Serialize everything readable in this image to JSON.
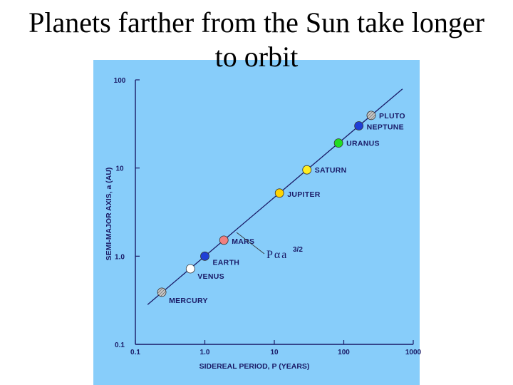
{
  "slide": {
    "title": "Planets farther from the Sun take longer to orbit"
  },
  "colors": {
    "panel_bg": "#87cdfa",
    "ink": "#1a1a66"
  },
  "annotation": {
    "law_p": "P",
    "law_alpha": "α",
    "law_a": "a",
    "law_exponent": "3/2"
  },
  "chart_data": {
    "type": "scatter",
    "x_scale": "log",
    "y_scale": "log",
    "xlabel": "SIDEREAL PERIOD, P (YEARS)",
    "ylabel": "SEMI-MAJOR AXIS, a (AU)",
    "xlim": [
      0.1,
      1000
    ],
    "ylim": [
      0.1,
      100
    ],
    "x_tick_labels": [
      "0.1",
      "1.0",
      "10",
      "100",
      "1000"
    ],
    "y_tick_labels": [
      "0.1",
      "1.0",
      "10",
      "100"
    ],
    "grid": false,
    "points": [
      {
        "label": "MERCURY",
        "x": 0.24,
        "y": 0.39,
        "color": "#b4b4b4",
        "pattern": "hatched"
      },
      {
        "label": "VENUS",
        "x": 0.62,
        "y": 0.72,
        "color": "#ffffff",
        "pattern": "solid"
      },
      {
        "label": "EARTH",
        "x": 1.0,
        "y": 1.0,
        "color": "#1f3fd6",
        "pattern": "solid"
      },
      {
        "label": "MARS",
        "x": 1.88,
        "y": 1.52,
        "color": "#f08080",
        "pattern": "solid"
      },
      {
        "label": "JUPITER",
        "x": 11.86,
        "y": 5.2,
        "color": "#ffd400",
        "pattern": "solid"
      },
      {
        "label": "SATURN",
        "x": 29.46,
        "y": 9.54,
        "color": "#ffee22",
        "pattern": "solid"
      },
      {
        "label": "URANUS",
        "x": 84.0,
        "y": 19.2,
        "color": "#22dd22",
        "pattern": "solid"
      },
      {
        "label": "NEPTUNE",
        "x": 164.8,
        "y": 30.1,
        "color": "#1f3fd6",
        "pattern": "solid"
      },
      {
        "label": "PLUTO",
        "x": 248.0,
        "y": 39.5,
        "color": "#b4b4b4",
        "pattern": "hatched"
      }
    ],
    "trend_line": {
      "law": "P ∝ a^3/2",
      "x_range": [
        0.15,
        700
      ]
    }
  }
}
